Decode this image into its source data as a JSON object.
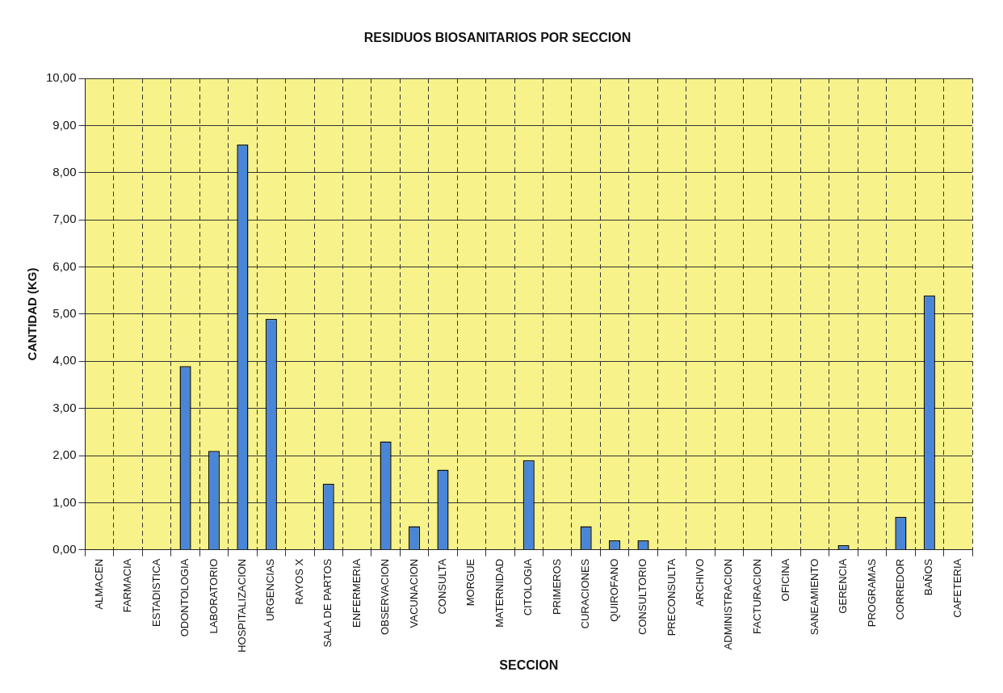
{
  "chart_data": {
    "type": "bar",
    "title": "RESIDUOS BIOSANITARIOS POR SECCION",
    "xlabel": "SECCION",
    "ylabel": "CANTIDAD (KG)",
    "categories": [
      "ALMACEN",
      "FARMACIA",
      "ESTADISTICA",
      "ODONTOLOGIA",
      "LABORATORIO",
      "HOSPITALIZACION",
      "URGENCIAS",
      "RAYOS X",
      "SALA DE PARTOS",
      "ENFERMERIA",
      "OBSERVACION",
      "VACUNACION",
      "CONSULTA",
      "MORGUE",
      "MATERNIDAD",
      "CITOLOGIA",
      "PRIMEROS",
      "CURACIONES",
      "QUIROFANO",
      "CONSULTORIO",
      "PRECONSULTA",
      "ARCHIVO",
      "ADMINISTRACION",
      "FACTURACION",
      "OFICINA",
      "SANEAMIENTO",
      "GERENCIA",
      "PROGRAMAS",
      "CORREDOR",
      "BAÑOS",
      "CAFETERIA"
    ],
    "values": [
      0,
      0,
      0,
      3.9,
      2.1,
      8.6,
      4.9,
      0,
      1.4,
      0,
      2.3,
      0.5,
      1.7,
      0,
      0,
      1.9,
      0,
      0.5,
      0.2,
      0.2,
      0,
      0,
      0,
      0,
      0,
      0,
      0.1,
      0,
      0.7,
      5.4,
      0
    ],
    "color": "#4a86d8",
    "ylim": [
      0,
      10
    ],
    "yticks": [
      {
        "value": 0,
        "label": "0,00"
      },
      {
        "value": 1,
        "label": "1,00"
      },
      {
        "value": 2,
        "label": "2,00"
      },
      {
        "value": 3,
        "label": "3,00"
      },
      {
        "value": 4,
        "label": "4,00"
      },
      {
        "value": 5,
        "label": "5,00"
      },
      {
        "value": 6,
        "label": "6,00"
      },
      {
        "value": 7,
        "label": "7,00"
      },
      {
        "value": 8,
        "label": "8,00"
      },
      {
        "value": 9,
        "label": "9,00"
      },
      {
        "value": 10,
        "label": "10,00"
      }
    ],
    "grid": true
  }
}
